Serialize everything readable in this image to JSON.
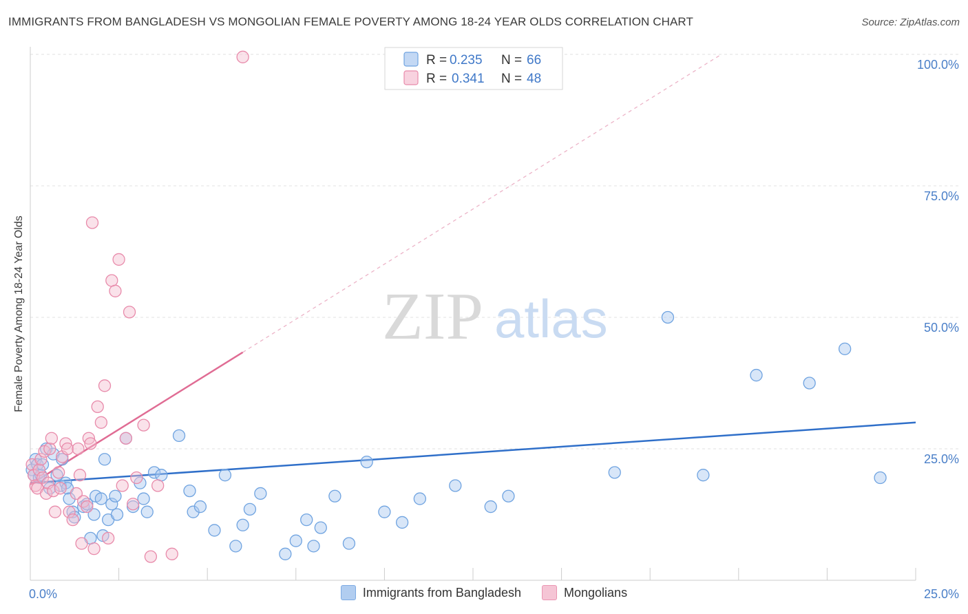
{
  "title": "IMMIGRANTS FROM BANGLADESH VS MONGOLIAN FEMALE POVERTY AMONG 18-24 YEAR OLDS CORRELATION CHART",
  "source": "Source: ZipAtlas.com",
  "watermark": {
    "zip": "ZIP",
    "atlas": "atlas"
  },
  "legend": {
    "r_label": "R =",
    "n_label": "N =",
    "rows": [
      {
        "r": "0.235",
        "n": "66"
      },
      {
        "r": "0.341",
        "n": "48"
      }
    ]
  },
  "chart_data": {
    "type": "scatter",
    "title": "IMMIGRANTS FROM BANGLADESH VS MONGOLIAN FEMALE POVERTY AMONG 18-24 YEAR OLDS CORRELATION CHART",
    "xlabel": "",
    "ylabel": "Female Poverty Among 18-24 Year Olds",
    "xlim": [
      0,
      25
    ],
    "ylim": [
      0,
      100
    ],
    "x_tick_labels": [
      "0.0%",
      "25.0%"
    ],
    "y_ticks": [
      {
        "value": 25,
        "label": "25.0%"
      },
      {
        "value": 50,
        "label": "50.0%"
      },
      {
        "value": 75,
        "label": "75.0%"
      },
      {
        "value": 100,
        "label": "100.0%"
      }
    ],
    "grid": true,
    "legend_position": "top-center",
    "series": [
      {
        "name": "Immigrants from Bangladesh",
        "color": "#6fa3e0",
        "fill": "#a9c8ef",
        "r": 0.235,
        "n": 66,
        "trend": {
          "x1": 0,
          "y1": 18.5,
          "x2": 25,
          "y2": 30
        },
        "points": [
          [
            0.05,
            21
          ],
          [
            0.1,
            20
          ],
          [
            0.15,
            23
          ],
          [
            0.2,
            22
          ],
          [
            0.25,
            19.5
          ],
          [
            0.3,
            20
          ],
          [
            0.35,
            22
          ],
          [
            0.45,
            25
          ],
          [
            0.55,
            17.5
          ],
          [
            0.65,
            24
          ],
          [
            0.75,
            20
          ],
          [
            0.85,
            18
          ],
          [
            0.9,
            23
          ],
          [
            1.0,
            18.5
          ],
          [
            1.05,
            17.5
          ],
          [
            1.1,
            15.5
          ],
          [
            1.2,
            13
          ],
          [
            1.25,
            12
          ],
          [
            1.5,
            14
          ],
          [
            1.6,
            14.5
          ],
          [
            1.7,
            8
          ],
          [
            1.8,
            12.5
          ],
          [
            1.85,
            16
          ],
          [
            2.0,
            15.5
          ],
          [
            2.05,
            8.5
          ],
          [
            2.1,
            23
          ],
          [
            2.2,
            11.5
          ],
          [
            2.3,
            14.5
          ],
          [
            2.4,
            16
          ],
          [
            2.45,
            12.5
          ],
          [
            2.7,
            27
          ],
          [
            2.9,
            14
          ],
          [
            3.1,
            18.5
          ],
          [
            3.2,
            15.5
          ],
          [
            3.3,
            13
          ],
          [
            3.5,
            20.5
          ],
          [
            3.7,
            20
          ],
          [
            4.2,
            27.5
          ],
          [
            4.5,
            17
          ],
          [
            4.6,
            13
          ],
          [
            4.8,
            14
          ],
          [
            5.2,
            9.5
          ],
          [
            5.5,
            20
          ],
          [
            5.8,
            6.5
          ],
          [
            6.0,
            10.5
          ],
          [
            6.2,
            13.5
          ],
          [
            6.5,
            16.5
          ],
          [
            7.2,
            5
          ],
          [
            7.5,
            7.5
          ],
          [
            7.8,
            11.5
          ],
          [
            8.0,
            6.5
          ],
          [
            8.2,
            10
          ],
          [
            8.6,
            16
          ],
          [
            9.0,
            7
          ],
          [
            9.5,
            22.5
          ],
          [
            10.0,
            13
          ],
          [
            10.5,
            11
          ],
          [
            11.0,
            15.5
          ],
          [
            12.0,
            18
          ],
          [
            13.0,
            14
          ],
          [
            13.5,
            16
          ],
          [
            16.5,
            20.5
          ],
          [
            18,
            50
          ],
          [
            19,
            20
          ],
          [
            20.5,
            39
          ],
          [
            22,
            37.5
          ],
          [
            23,
            44
          ],
          [
            24,
            19.5
          ]
        ]
      },
      {
        "name": "Mongolians",
        "color": "#e88aaa",
        "fill": "#f5bfd1",
        "r": 0.341,
        "n": 48,
        "trend": {
          "x1": 0,
          "y1": 18.2,
          "x2": 25,
          "y2": 123
        },
        "trend_solid_until_x": 6.0,
        "points": [
          [
            0.05,
            22
          ],
          [
            0.1,
            20
          ],
          [
            0.15,
            18
          ],
          [
            0.2,
            17.5
          ],
          [
            0.25,
            21
          ],
          [
            0.3,
            23
          ],
          [
            0.35,
            19.5
          ],
          [
            0.4,
            24.5
          ],
          [
            0.45,
            16.5
          ],
          [
            0.5,
            18.5
          ],
          [
            0.55,
            25
          ],
          [
            0.6,
            27
          ],
          [
            0.65,
            17
          ],
          [
            0.7,
            13
          ],
          [
            0.8,
            20.5
          ],
          [
            0.85,
            17.5
          ],
          [
            0.9,
            23.5
          ],
          [
            1.0,
            26
          ],
          [
            1.05,
            25
          ],
          [
            1.1,
            13
          ],
          [
            1.2,
            11.5
          ],
          [
            1.3,
            16.5
          ],
          [
            1.35,
            25
          ],
          [
            1.4,
            20
          ],
          [
            1.45,
            7
          ],
          [
            1.5,
            15
          ],
          [
            1.6,
            14
          ],
          [
            1.65,
            27
          ],
          [
            1.7,
            26
          ],
          [
            1.75,
            68
          ],
          [
            1.8,
            6
          ],
          [
            1.9,
            33
          ],
          [
            2.0,
            30
          ],
          [
            2.1,
            37
          ],
          [
            2.2,
            8
          ],
          [
            2.3,
            57
          ],
          [
            2.4,
            55
          ],
          [
            2.5,
            61
          ],
          [
            2.6,
            18
          ],
          [
            2.7,
            27
          ],
          [
            2.8,
            51
          ],
          [
            2.9,
            14.5
          ],
          [
            3.0,
            19.5
          ],
          [
            3.2,
            29.5
          ],
          [
            3.4,
            4.5
          ],
          [
            3.6,
            18
          ],
          [
            4.0,
            5
          ],
          [
            6.0,
            99.5
          ]
        ]
      }
    ]
  }
}
